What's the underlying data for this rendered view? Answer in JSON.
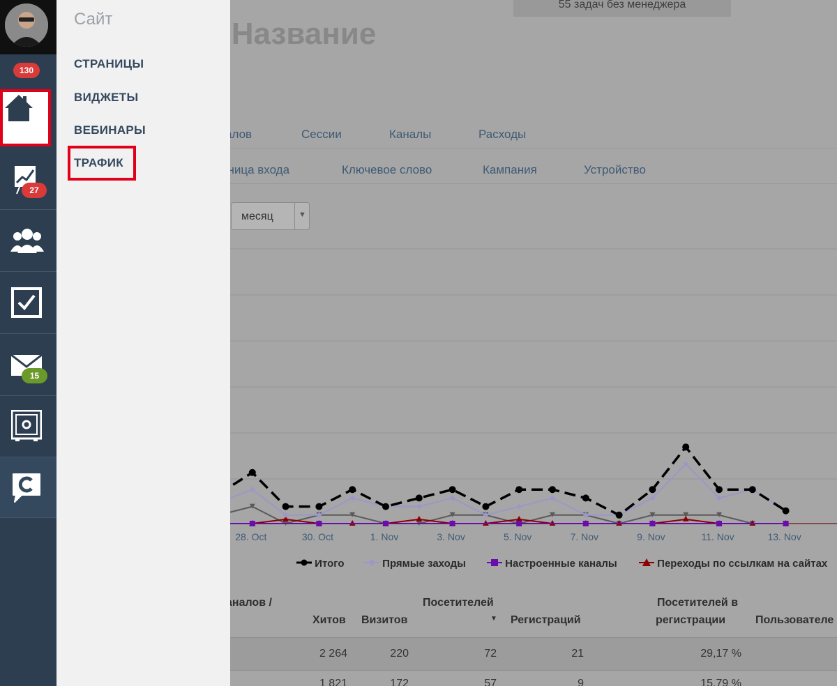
{
  "rail": {
    "badges": {
      "notifications": "130",
      "analytics": "27",
      "mail": "15"
    },
    "icons": [
      "avatar",
      "home-icon",
      "chart-icon",
      "users-icon",
      "tasks-icon",
      "mail-icon",
      "safe-icon",
      "chat-logo-icon"
    ]
  },
  "menu": {
    "title": "Сайт",
    "items": [
      "СТРАНИЦЫ",
      "ВИДЖЕТЫ",
      "ВЕБИНАРЫ",
      "ТРАФИК"
    ]
  },
  "content": {
    "task_banner": "55 задач без менеджера",
    "page_title": "е Название",
    "tabs_row1": [
      "алов",
      "Сессии",
      "Каналы",
      "Расходы"
    ],
    "tabs_row2": [
      "аница входа",
      "Ключевое слово",
      "Кампания",
      "Устройство"
    ],
    "period_select": "месяц"
  },
  "chart_data": {
    "type": "line",
    "x_tick_labels": [
      "28. Oct",
      "30. Oct",
      "1. Nov",
      "3. Nov",
      "5. Nov",
      "7. Nov",
      "9. Nov",
      "11. Nov",
      "13. Nov"
    ],
    "legend": [
      "Итого",
      "Прямые заходы",
      "Настроенные каналы",
      "Переходы по ссылкам на сайтах"
    ],
    "series": [
      {
        "name": "Итого",
        "color": "#000000",
        "dashed": true,
        "values": [
          7,
          12,
          4,
          4,
          8,
          4,
          6,
          8,
          4,
          8,
          8,
          6,
          2,
          8,
          18,
          8,
          8,
          3
        ]
      },
      {
        "name": "Прямые заходы",
        "color": "#9b97c9",
        "values": [
          5,
          8,
          2,
          2,
          6,
          4,
          4,
          6,
          2,
          4,
          6,
          2,
          2,
          6,
          14,
          6,
          8,
          3
        ]
      },
      {
        "name": "Настроенные каналы",
        "color": "#6a0dad",
        "values": [
          0,
          0,
          0,
          0,
          0,
          0,
          0,
          0,
          0,
          0,
          0,
          0,
          0,
          0,
          0,
          0,
          0,
          0
        ]
      },
      {
        "name": "Переходы по ссылкам на сайтах",
        "color": "#8b0000",
        "values": [
          0,
          0,
          1,
          0,
          0,
          0,
          1,
          0,
          0,
          1,
          0,
          0,
          0,
          0,
          1,
          0,
          0,
          0
        ]
      },
      {
        "name": "",
        "color": "#5a5a5a",
        "values": [
          2,
          4,
          0,
          2,
          2,
          0,
          0,
          2,
          2,
          0,
          2,
          2,
          0,
          2,
          2,
          2,
          0,
          0
        ]
      }
    ]
  },
  "table": {
    "headers": [
      "аналов /",
      "Хитов",
      "Визитов",
      "Посетителей",
      "Регистраций",
      "Посетителей в",
      "регистрации",
      "Пользователе"
    ],
    "rows": [
      [
        "2 264",
        "220",
        "72",
        "21",
        "29,17 %"
      ],
      [
        "1 821",
        "172",
        "57",
        "9",
        "15,79 %"
      ]
    ]
  }
}
